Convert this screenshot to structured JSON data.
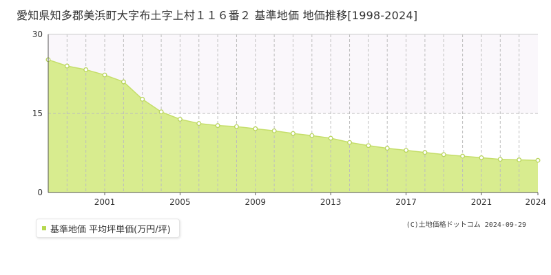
{
  "title": "愛知県知多郡美浜町大字布土字上村１１６番２ 基準地価 地価推移[1998-2024]",
  "copyright": "(C)土地価格ドットコム 2024-09-29",
  "colors": {
    "fill": "#d8ec8f",
    "line": "#c5de6a",
    "marker_fill": "#ffffff",
    "marker_stroke": "#b8d45c",
    "grid": "#bdbdbd",
    "upper_band": "#faf7fb",
    "legend_marker": "#b6d84e"
  },
  "chart_data": {
    "type": "area",
    "title": "愛知県知多郡美浜町大字布土字上村１１６番２ 基準地価 地価推移[1998-2024]",
    "xlabel": "",
    "ylabel": "",
    "ylim": [
      0,
      30
    ],
    "xlim": [
      1998,
      2024
    ],
    "y_ticks": [
      0,
      15,
      30
    ],
    "x_ticks": [
      2001,
      2005,
      2009,
      2013,
      2017,
      2021,
      2024
    ],
    "grid": true,
    "legend_position": "bottom-left",
    "series": [
      {
        "name": "基準地価 平均坪単価(万円/坪)",
        "x": [
          1998,
          1999,
          2000,
          2001,
          2002,
          2003,
          2004,
          2005,
          2006,
          2007,
          2008,
          2009,
          2010,
          2011,
          2012,
          2013,
          2014,
          2015,
          2016,
          2017,
          2018,
          2019,
          2020,
          2021,
          2022,
          2023,
          2024
        ],
        "y": [
          25.2,
          24.0,
          23.3,
          22.3,
          21.0,
          17.7,
          15.3,
          13.9,
          13.1,
          12.7,
          12.5,
          12.1,
          11.7,
          11.2,
          10.8,
          10.3,
          9.5,
          8.9,
          8.4,
          8.0,
          7.6,
          7.2,
          6.9,
          6.6,
          6.3,
          6.2,
          6.1
        ]
      }
    ]
  }
}
